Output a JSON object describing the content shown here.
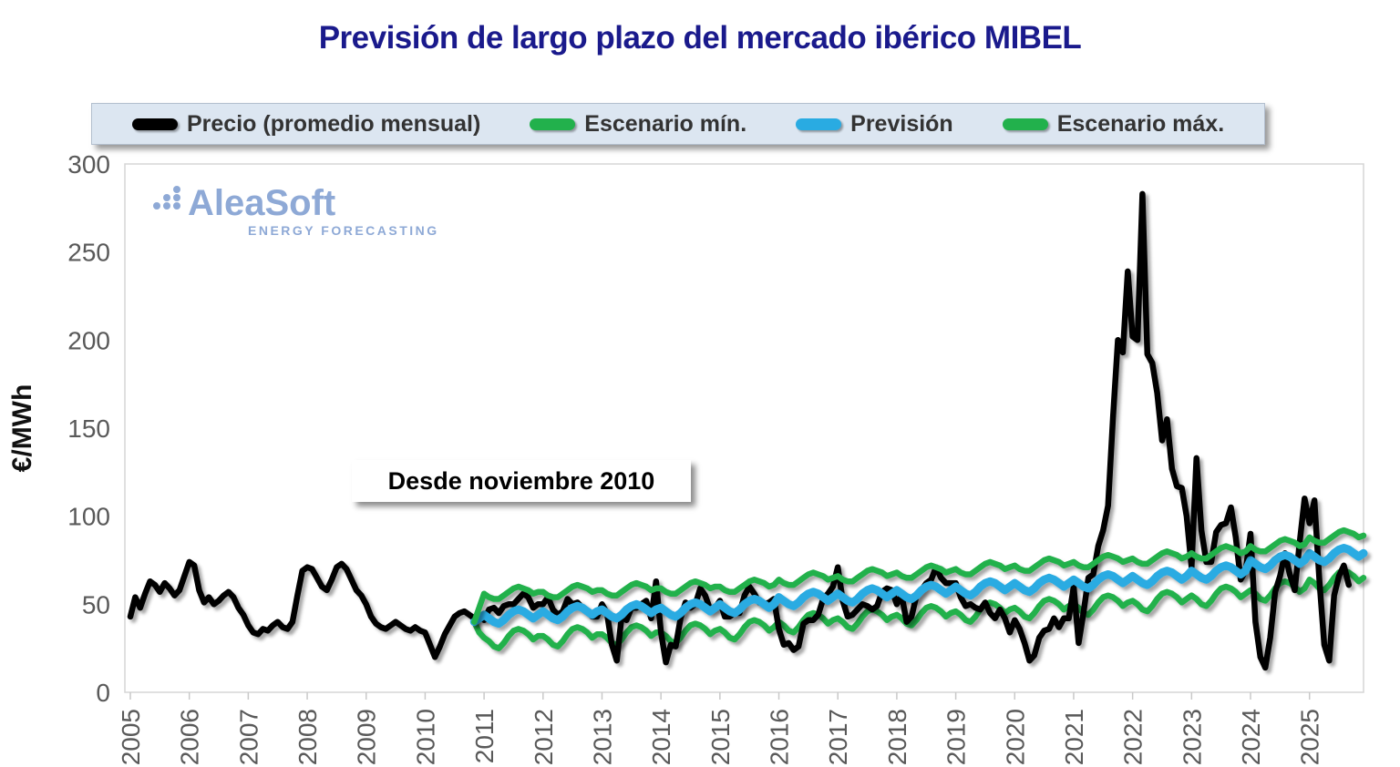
{
  "page": {
    "title": "Previsión de largo plazo del mercado ibérico MIBEL"
  },
  "watermark": {
    "brand": "AleaSoft",
    "tagline": "ENERGY FORECASTING"
  },
  "annotation": {
    "text": "Desde noviembre 2010"
  },
  "chart_data": {
    "type": "line",
    "title": "Previsión de largo plazo del mercado ibérico MIBEL",
    "xlabel": "",
    "ylabel": "€/MWh",
    "ylim": [
      0,
      300
    ],
    "yticks": [
      0,
      50,
      100,
      150,
      200,
      250,
      300
    ],
    "x_years": [
      2005,
      2006,
      2007,
      2008,
      2009,
      2010,
      2011,
      2012,
      2013,
      2014,
      2015,
      2016,
      2017,
      2018,
      2019,
      2020,
      2021,
      2022,
      2023,
      2024,
      2025
    ],
    "x_unit": "month",
    "x_start": "2005-01",
    "x_end": "2025-12",
    "months_total": 252,
    "grid": false,
    "legend_position": "top",
    "forecast_start": "2010-11",
    "draw_order": [
      1,
      0,
      2,
      3
    ],
    "series": [
      {
        "name": "Precio (promedio mensual)",
        "color": "#000000",
        "stroke_width": 6.5,
        "start": "2005-01",
        "start_index": 0,
        "values": [
          43,
          54,
          48,
          56,
          63,
          61,
          57,
          62,
          59,
          55,
          58,
          66,
          74,
          72,
          58,
          51,
          54,
          50,
          52,
          55,
          57,
          54,
          48,
          44,
          38,
          34,
          33,
          36,
          35,
          38,
          40,
          37,
          36,
          40,
          55,
          69,
          71,
          70,
          65,
          60,
          58,
          64,
          71,
          73,
          70,
          64,
          58,
          55,
          50,
          43,
          39,
          37,
          36,
          38,
          40,
          38,
          36,
          35,
          37,
          35,
          34,
          27,
          20,
          26,
          33,
          38,
          43,
          45,
          46,
          44,
          42,
          44,
          41,
          47,
          48,
          45,
          49,
          50,
          50,
          53,
          56,
          54,
          48,
          50,
          50,
          54,
          47,
          44,
          46,
          53,
          50,
          51,
          48,
          46,
          43,
          43,
          50,
          45,
          27,
          18,
          43,
          41,
          48,
          48,
          50,
          52,
          42,
          63,
          34,
          17,
          27,
          26,
          42,
          51,
          48,
          50,
          59,
          55,
          47,
          48,
          52,
          43,
          43,
          45,
          45,
          55,
          60,
          56,
          51,
          50,
          51,
          53,
          36,
          27,
          28,
          24,
          26,
          39,
          41,
          41,
          44,
          53,
          56,
          60,
          71,
          52,
          43,
          44,
          47,
          50,
          49,
          47,
          49,
          57,
          59,
          58,
          50,
          55,
          40,
          43,
          55,
          58,
          62,
          64,
          71,
          65,
          62,
          62,
          62,
          54,
          49,
          50,
          48,
          47,
          51,
          45,
          42,
          47,
          42,
          34,
          41,
          36,
          28,
          18,
          21,
          31,
          35,
          36,
          42,
          37,
          42,
          42,
          60,
          28,
          45,
          65,
          67,
          83,
          92,
          106,
          156,
          200,
          193,
          239,
          202,
          200,
          283,
          192,
          187,
          170,
          143,
          155,
          127,
          117,
          116,
          100,
          71,
          133,
          92,
          74,
          74,
          91,
          95,
          96,
          105,
          88,
          64,
          69,
          90,
          40,
          20,
          14,
          31,
          57,
          66,
          79,
          67,
          58,
          85,
          110,
          96,
          109,
          64,
          27,
          18,
          55,
          66,
          72,
          61
        ]
      },
      {
        "name": "Escenario mín.",
        "color": "#22b14c",
        "stroke_width": 6.5,
        "start": "2010-11",
        "start_index": 70,
        "values": [
          40,
          34,
          31,
          29,
          26,
          25,
          28,
          32,
          35,
          36,
          35,
          33,
          30,
          32,
          32,
          30,
          27,
          26,
          29,
          33,
          36,
          37,
          36,
          34,
          31,
          33,
          33,
          31,
          28,
          27,
          30,
          34,
          37,
          38,
          37,
          35,
          32,
          34,
          34,
          32,
          29,
          28,
          31,
          35,
          38,
          39,
          38,
          36,
          33,
          35,
          36,
          34,
          31,
          30,
          33,
          37,
          40,
          41,
          40,
          38,
          35,
          37,
          40,
          38,
          35,
          34,
          37,
          41,
          44,
          45,
          44,
          42,
          39,
          41,
          42,
          40,
          37,
          36,
          39,
          43,
          46,
          47,
          46,
          44,
          41,
          43,
          44,
          42,
          39,
          38,
          41,
          45,
          48,
          49,
          48,
          46,
          43,
          45,
          46,
          44,
          41,
          40,
          43,
          47,
          50,
          51,
          50,
          48,
          45,
          47,
          48,
          46,
          43,
          42,
          45,
          49,
          52,
          53,
          52,
          50,
          47,
          49,
          50,
          48,
          45,
          44,
          47,
          51,
          54,
          55,
          54,
          52,
          49,
          51,
          52,
          50,
          47,
          46,
          49,
          53,
          56,
          57,
          56,
          54,
          51,
          53,
          55,
          53,
          50,
          49,
          52,
          56,
          59,
          60,
          59,
          57,
          54,
          56,
          58,
          56,
          53,
          52,
          55,
          59,
          62,
          63,
          62,
          60,
          57,
          59,
          64,
          62,
          59,
          58,
          61,
          65,
          68,
          69,
          68,
          66,
          63,
          65
        ]
      },
      {
        "name": "Previsión",
        "color": "#29abe2",
        "stroke_width": 9,
        "start": "2010-11",
        "start_index": 70,
        "values": [
          40,
          42,
          44,
          42,
          40,
          39,
          41,
          44,
          46,
          47,
          46,
          44,
          42,
          44,
          46,
          44,
          42,
          41,
          43,
          46,
          48,
          49,
          48,
          46,
          44,
          46,
          47,
          45,
          43,
          42,
          44,
          47,
          49,
          50,
          49,
          47,
          45,
          47,
          48,
          46,
          44,
          43,
          45,
          48,
          50,
          51,
          50,
          48,
          46,
          48,
          50,
          48,
          46,
          45,
          47,
          50,
          52,
          53,
          52,
          50,
          48,
          50,
          54,
          52,
          50,
          49,
          51,
          54,
          56,
          57,
          56,
          54,
          52,
          54,
          56,
          54,
          52,
          51,
          53,
          56,
          58,
          59,
          58,
          56,
          54,
          56,
          58,
          56,
          54,
          53,
          55,
          58,
          60,
          61,
          60,
          58,
          56,
          58,
          60,
          58,
          56,
          55,
          57,
          60,
          62,
          63,
          62,
          60,
          58,
          60,
          62,
          60,
          58,
          57,
          59,
          62,
          64,
          65,
          64,
          62,
          60,
          62,
          64,
          62,
          60,
          59,
          61,
          64,
          66,
          67,
          66,
          64,
          62,
          64,
          66,
          64,
          62,
          61,
          63,
          66,
          68,
          69,
          68,
          66,
          64,
          66,
          69,
          67,
          65,
          64,
          66,
          69,
          71,
          72,
          71,
          69,
          67,
          69,
          75,
          73,
          71,
          70,
          72,
          75,
          77,
          78,
          77,
          75,
          73,
          75,
          79,
          77,
          75,
          74,
          76,
          79,
          81,
          82,
          81,
          79,
          77,
          79
        ]
      },
      {
        "name": "Escenario máx.",
        "color": "#22b14c",
        "stroke_width": 6.5,
        "start": "2010-11",
        "start_index": 70,
        "values": [
          40,
          48,
          56,
          54,
          53,
          53,
          55,
          57,
          59,
          60,
          59,
          58,
          56,
          57,
          57,
          55,
          54,
          54,
          56,
          58,
          60,
          61,
          60,
          59,
          57,
          58,
          58,
          56,
          55,
          55,
          57,
          59,
          61,
          62,
          61,
          60,
          58,
          59,
          59,
          57,
          56,
          56,
          58,
          60,
          62,
          63,
          62,
          61,
          59,
          60,
          60,
          58,
          57,
          57,
          59,
          61,
          63,
          64,
          63,
          62,
          60,
          61,
          64,
          62,
          61,
          61,
          63,
          65,
          67,
          68,
          67,
          66,
          64,
          65,
          66,
          64,
          63,
          63,
          65,
          67,
          69,
          70,
          69,
          68,
          66,
          67,
          68,
          66,
          65,
          65,
          67,
          69,
          71,
          72,
          71,
          70,
          68,
          69,
          70,
          68,
          67,
          67,
          69,
          71,
          73,
          74,
          73,
          72,
          70,
          71,
          72,
          70,
          69,
          69,
          71,
          73,
          75,
          76,
          75,
          74,
          72,
          73,
          74,
          72,
          71,
          71,
          73,
          75,
          77,
          78,
          77,
          76,
          74,
          75,
          76,
          74,
          73,
          73,
          75,
          77,
          79,
          80,
          79,
          78,
          76,
          77,
          79,
          77,
          76,
          76,
          78,
          80,
          82,
          83,
          82,
          81,
          79,
          80,
          83,
          81,
          80,
          80,
          82,
          84,
          86,
          87,
          86,
          85,
          83,
          84,
          88,
          86,
          85,
          85,
          87,
          89,
          91,
          92,
          91,
          90,
          88,
          89
        ]
      }
    ]
  }
}
